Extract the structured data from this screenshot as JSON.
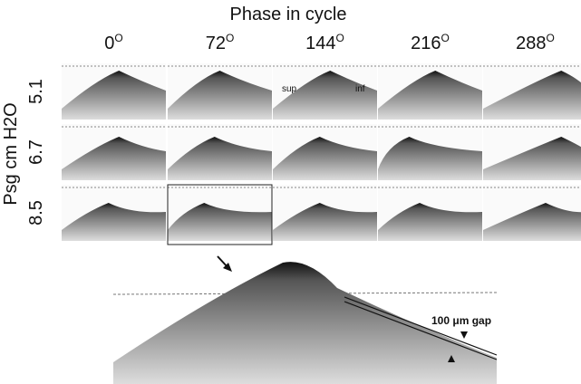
{
  "title": "Phase in cycle",
  "columns": [
    {
      "label": "0",
      "superscript": "O"
    },
    {
      "label": "72",
      "superscript": "O"
    },
    {
      "label": "144",
      "superscript": "O"
    },
    {
      "label": "216",
      "superscript": "O"
    },
    {
      "label": "288",
      "superscript": "O"
    }
  ],
  "y_label": "Psg cm H2O",
  "rows": [
    "5.1",
    "6.7",
    "8.5"
  ],
  "annotations": {
    "sup": "sup",
    "inf": "inf",
    "gap": "100 μm gap"
  }
}
